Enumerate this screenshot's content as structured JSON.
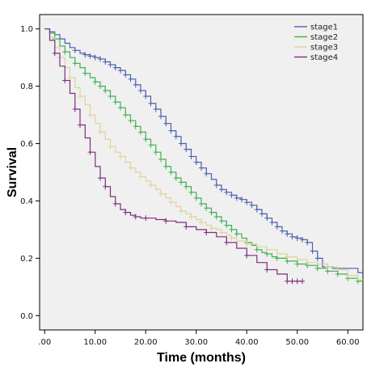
{
  "chart_data": {
    "type": "line",
    "xlabel": "Time (months)",
    "ylabel": "Survival",
    "xlim": [
      -1,
      63
    ],
    "ylim": [
      -0.05,
      1.05
    ],
    "x_ticks": [
      ".00",
      "10.00",
      "20.00",
      "30.00",
      "40.00",
      "50.00",
      "60.00"
    ],
    "x_tick_values": [
      0,
      10,
      20,
      30,
      40,
      50,
      60
    ],
    "y_ticks": [
      "0.0",
      "0.2",
      "0.4",
      "0.6",
      "0.8",
      "1.0"
    ],
    "y_tick_values": [
      0.0,
      0.2,
      0.4,
      0.6,
      0.8,
      1.0
    ],
    "background_color": "#f0f0f0",
    "grid": false,
    "legend_position": "top-right",
    "step": true,
    "series": [
      {
        "name": "stage1",
        "color": "#4a5fb0",
        "points": [
          [
            0,
            1.0
          ],
          [
            1,
            0.99
          ],
          [
            2,
            0.98
          ],
          [
            3,
            0.965
          ],
          [
            4,
            0.95
          ],
          [
            5,
            0.935
          ],
          [
            6,
            0.925
          ],
          [
            7,
            0.915
          ],
          [
            8,
            0.91
          ],
          [
            9,
            0.905
          ],
          [
            10,
            0.9
          ],
          [
            11,
            0.895
          ],
          [
            12,
            0.885
          ],
          [
            13,
            0.875
          ],
          [
            14,
            0.865
          ],
          [
            15,
            0.855
          ],
          [
            16,
            0.84
          ],
          [
            17,
            0.825
          ],
          [
            18,
            0.805
          ],
          [
            19,
            0.785
          ],
          [
            20,
            0.765
          ],
          [
            21,
            0.74
          ],
          [
            22,
            0.72
          ],
          [
            23,
            0.695
          ],
          [
            24,
            0.67
          ],
          [
            25,
            0.645
          ],
          [
            26,
            0.625
          ],
          [
            27,
            0.6
          ],
          [
            28,
            0.58
          ],
          [
            29,
            0.555
          ],
          [
            30,
            0.535
          ],
          [
            31,
            0.515
          ],
          [
            32,
            0.495
          ],
          [
            33,
            0.475
          ],
          [
            34,
            0.455
          ],
          [
            35,
            0.44
          ],
          [
            36,
            0.43
          ],
          [
            37,
            0.42
          ],
          [
            38,
            0.41
          ],
          [
            39,
            0.405
          ],
          [
            40,
            0.395
          ],
          [
            41,
            0.385
          ],
          [
            42,
            0.37
          ],
          [
            43,
            0.355
          ],
          [
            44,
            0.34
          ],
          [
            45,
            0.325
          ],
          [
            46,
            0.31
          ],
          [
            47,
            0.295
          ],
          [
            48,
            0.285
          ],
          [
            49,
            0.275
          ],
          [
            50,
            0.27
          ],
          [
            51,
            0.265
          ],
          [
            52,
            0.255
          ],
          [
            53,
            0.225
          ],
          [
            54,
            0.2
          ],
          [
            55,
            0.17
          ],
          [
            57,
            0.165
          ],
          [
            60,
            0.165
          ],
          [
            62,
            0.15
          ],
          [
            63,
            0.15
          ]
        ],
        "censor_x": [
          3,
          6,
          8,
          9,
          10,
          11,
          12,
          13,
          14,
          15,
          16,
          17,
          18,
          19,
          20,
          21,
          22,
          23,
          24,
          25,
          26,
          27,
          28,
          29,
          30,
          31,
          32,
          34,
          35,
          36,
          37,
          38,
          39,
          40,
          41,
          42,
          43,
          44,
          45,
          46,
          47,
          48,
          49,
          50,
          51,
          52,
          53,
          54
        ]
      },
      {
        "name": "stage2",
        "color": "#3fb04f",
        "points": [
          [
            0,
            1.0
          ],
          [
            1,
            0.985
          ],
          [
            2,
            0.965
          ],
          [
            3,
            0.94
          ],
          [
            4,
            0.92
          ],
          [
            5,
            0.9
          ],
          [
            6,
            0.88
          ],
          [
            7,
            0.865
          ],
          [
            8,
            0.845
          ],
          [
            9,
            0.83
          ],
          [
            10,
            0.815
          ],
          [
            11,
            0.8
          ],
          [
            12,
            0.785
          ],
          [
            13,
            0.765
          ],
          [
            14,
            0.745
          ],
          [
            15,
            0.725
          ],
          [
            16,
            0.7
          ],
          [
            17,
            0.68
          ],
          [
            18,
            0.66
          ],
          [
            19,
            0.64
          ],
          [
            20,
            0.615
          ],
          [
            21,
            0.595
          ],
          [
            22,
            0.57
          ],
          [
            23,
            0.545
          ],
          [
            24,
            0.52
          ],
          [
            25,
            0.5
          ],
          [
            26,
            0.48
          ],
          [
            27,
            0.465
          ],
          [
            28,
            0.45
          ],
          [
            29,
            0.43
          ],
          [
            30,
            0.41
          ],
          [
            31,
            0.39
          ],
          [
            32,
            0.375
          ],
          [
            33,
            0.36
          ],
          [
            34,
            0.345
          ],
          [
            35,
            0.33
          ],
          [
            36,
            0.315
          ],
          [
            37,
            0.3
          ],
          [
            38,
            0.285
          ],
          [
            39,
            0.27
          ],
          [
            40,
            0.255
          ],
          [
            41,
            0.245
          ],
          [
            42,
            0.23
          ],
          [
            43,
            0.22
          ],
          [
            44,
            0.215
          ],
          [
            45,
            0.205
          ],
          [
            46,
            0.2
          ],
          [
            48,
            0.19
          ],
          [
            50,
            0.18
          ],
          [
            52,
            0.175
          ],
          [
            54,
            0.165
          ],
          [
            56,
            0.155
          ],
          [
            58,
            0.145
          ],
          [
            60,
            0.13
          ],
          [
            62,
            0.12
          ],
          [
            63,
            0.12
          ]
        ],
        "censor_x": [
          2,
          4,
          6,
          8,
          10,
          11,
          12,
          13,
          14,
          15,
          16,
          17,
          18,
          19,
          20,
          21,
          22,
          23,
          24,
          25,
          26,
          27,
          28,
          29,
          30,
          31,
          32,
          33,
          34,
          35,
          36,
          37,
          38,
          40,
          42,
          44,
          46,
          48,
          50,
          52,
          54,
          56,
          58,
          60,
          62
        ]
      },
      {
        "name": "stage3",
        "color": "#dcd49a",
        "points": [
          [
            0,
            1.0
          ],
          [
            1,
            0.97
          ],
          [
            2,
            0.935
          ],
          [
            3,
            0.9
          ],
          [
            4,
            0.865
          ],
          [
            5,
            0.83
          ],
          [
            6,
            0.795
          ],
          [
            7,
            0.765
          ],
          [
            8,
            0.735
          ],
          [
            9,
            0.7
          ],
          [
            10,
            0.67
          ],
          [
            11,
            0.64
          ],
          [
            12,
            0.615
          ],
          [
            13,
            0.59
          ],
          [
            14,
            0.57
          ],
          [
            15,
            0.555
          ],
          [
            16,
            0.535
          ],
          [
            17,
            0.515
          ],
          [
            18,
            0.5
          ],
          [
            19,
            0.485
          ],
          [
            20,
            0.47
          ],
          [
            21,
            0.455
          ],
          [
            22,
            0.44
          ],
          [
            23,
            0.425
          ],
          [
            24,
            0.41
          ],
          [
            25,
            0.395
          ],
          [
            26,
            0.38
          ],
          [
            27,
            0.365
          ],
          [
            28,
            0.355
          ],
          [
            29,
            0.345
          ],
          [
            30,
            0.335
          ],
          [
            31,
            0.325
          ],
          [
            32,
            0.315
          ],
          [
            33,
            0.305
          ],
          [
            34,
            0.3
          ],
          [
            35,
            0.29
          ],
          [
            36,
            0.28
          ],
          [
            37,
            0.27
          ],
          [
            38,
            0.26
          ],
          [
            40,
            0.25
          ],
          [
            42,
            0.24
          ],
          [
            44,
            0.23
          ],
          [
            46,
            0.215
          ],
          [
            48,
            0.205
          ],
          [
            50,
            0.195
          ],
          [
            52,
            0.185
          ],
          [
            54,
            0.18
          ],
          [
            56,
            0.17
          ],
          [
            58,
            0.16
          ],
          [
            60,
            0.14
          ],
          [
            62,
            0.125
          ],
          [
            63,
            0.125
          ]
        ],
        "censor_x": [
          3,
          5,
          7,
          9,
          11,
          13,
          15,
          17,
          19,
          21,
          23,
          25,
          27,
          29,
          31,
          33,
          35,
          37,
          40,
          44,
          48,
          52,
          56,
          60
        ]
      },
      {
        "name": "stage4",
        "color": "#7c2f7e",
        "points": [
          [
            0,
            1.0
          ],
          [
            1,
            0.96
          ],
          [
            2,
            0.915
          ],
          [
            3,
            0.87
          ],
          [
            4,
            0.82
          ],
          [
            5,
            0.775
          ],
          [
            6,
            0.72
          ],
          [
            7,
            0.665
          ],
          [
            8,
            0.62
          ],
          [
            9,
            0.57
          ],
          [
            10,
            0.52
          ],
          [
            11,
            0.48
          ],
          [
            12,
            0.45
          ],
          [
            13,
            0.415
          ],
          [
            14,
            0.39
          ],
          [
            15,
            0.37
          ],
          [
            16,
            0.36
          ],
          [
            17,
            0.35
          ],
          [
            18,
            0.345
          ],
          [
            19,
            0.34
          ],
          [
            20,
            0.34
          ],
          [
            22,
            0.335
          ],
          [
            24,
            0.33
          ],
          [
            26,
            0.325
          ],
          [
            28,
            0.31
          ],
          [
            30,
            0.3
          ],
          [
            32,
            0.29
          ],
          [
            34,
            0.275
          ],
          [
            36,
            0.255
          ],
          [
            38,
            0.235
          ],
          [
            40,
            0.21
          ],
          [
            42,
            0.185
          ],
          [
            44,
            0.16
          ],
          [
            46,
            0.145
          ],
          [
            48,
            0.12
          ],
          [
            51,
            0.12
          ]
        ],
        "censor_x": [
          2,
          4,
          6,
          7,
          9,
          11,
          12,
          14,
          16,
          18,
          20,
          24,
          28,
          32,
          36,
          40,
          44,
          48,
          49,
          50,
          51
        ]
      }
    ]
  }
}
